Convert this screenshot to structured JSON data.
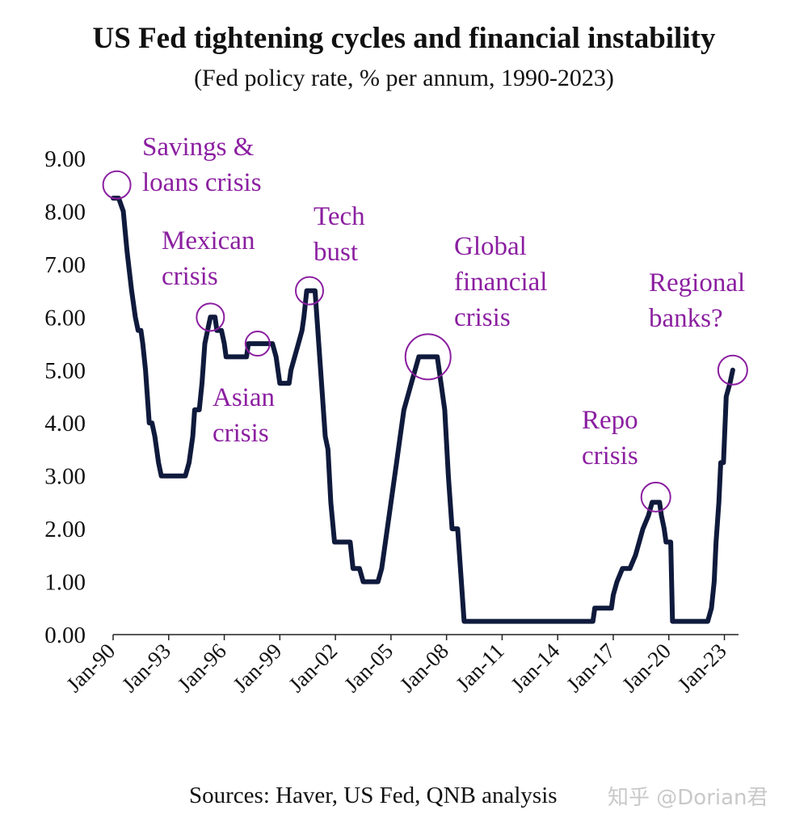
{
  "title": "US Fed tightening cycles and financial instability",
  "subtitle": "(Fed policy rate, % per annum, 1990-2023)",
  "source": "Sources: Haver, US Fed, QNB analysis",
  "watermark": "知乎 @Dorian君",
  "colors": {
    "line": "#0f1a3c",
    "annotation": "#8b1fa0",
    "axis": "#222222"
  },
  "chart_data": {
    "type": "line",
    "xlabel": "",
    "ylabel": "",
    "ylim": [
      0,
      9
    ],
    "xlim": [
      1990.0,
      2023.5
    ],
    "y_ticks": [
      "9.00",
      "8.00",
      "7.00",
      "6.00",
      "5.00",
      "4.00",
      "3.00",
      "2.00",
      "1.00",
      "0.00"
    ],
    "x_ticks": [
      {
        "label": "Jan-90",
        "value": 1990
      },
      {
        "label": "Jan-93",
        "value": 1993
      },
      {
        "label": "Jan-96",
        "value": 1996
      },
      {
        "label": "Jan-99",
        "value": 1999
      },
      {
        "label": "Jan-02",
        "value": 2002
      },
      {
        "label": "Jan-05",
        "value": 2005
      },
      {
        "label": "Jan-08",
        "value": 2008
      },
      {
        "label": "Jan-11",
        "value": 2011
      },
      {
        "label": "Jan-14",
        "value": 2014
      },
      {
        "label": "Jan-17",
        "value": 2017
      },
      {
        "label": "Jan-20",
        "value": 2020
      },
      {
        "label": "Jan-23",
        "value": 2023
      }
    ],
    "series": [
      {
        "points": [
          [
            1990.0,
            8.25
          ],
          [
            1990.3,
            8.25
          ],
          [
            1990.55,
            8.0
          ],
          [
            1990.75,
            7.25
          ],
          [
            1991.0,
            6.5
          ],
          [
            1991.2,
            6.0
          ],
          [
            1991.35,
            5.75
          ],
          [
            1991.5,
            5.75
          ],
          [
            1991.6,
            5.5
          ],
          [
            1991.75,
            5.0
          ],
          [
            1991.85,
            4.5
          ],
          [
            1991.95,
            4.0
          ],
          [
            1992.1,
            4.0
          ],
          [
            1992.25,
            3.75
          ],
          [
            1992.45,
            3.25
          ],
          [
            1992.6,
            3.0
          ],
          [
            1993.0,
            3.0
          ],
          [
            1993.5,
            3.0
          ],
          [
            1993.9,
            3.0
          ],
          [
            1994.1,
            3.25
          ],
          [
            1994.3,
            3.75
          ],
          [
            1994.4,
            4.25
          ],
          [
            1994.65,
            4.25
          ],
          [
            1994.8,
            4.75
          ],
          [
            1994.95,
            5.5
          ],
          [
            1995.1,
            5.75
          ],
          [
            1995.25,
            6.0
          ],
          [
            1995.5,
            6.0
          ],
          [
            1995.6,
            5.75
          ],
          [
            1995.85,
            5.75
          ],
          [
            1996.0,
            5.5
          ],
          [
            1996.1,
            5.25
          ],
          [
            1996.8,
            5.25
          ],
          [
            1997.2,
            5.25
          ],
          [
            1997.3,
            5.5
          ],
          [
            1998.0,
            5.5
          ],
          [
            1998.6,
            5.5
          ],
          [
            1998.8,
            5.25
          ],
          [
            1998.9,
            5.0
          ],
          [
            1999.0,
            4.75
          ],
          [
            1999.5,
            4.75
          ],
          [
            1999.6,
            5.0
          ],
          [
            1999.8,
            5.25
          ],
          [
            2000.0,
            5.5
          ],
          [
            2000.2,
            5.75
          ],
          [
            2000.3,
            6.0
          ],
          [
            2000.45,
            6.5
          ],
          [
            2000.9,
            6.5
          ],
          [
            2001.1,
            5.5
          ],
          [
            2001.3,
            4.5
          ],
          [
            2001.45,
            3.75
          ],
          [
            2001.6,
            3.5
          ],
          [
            2001.75,
            2.5
          ],
          [
            2001.95,
            1.75
          ],
          [
            2002.2,
            1.75
          ],
          [
            2002.8,
            1.75
          ],
          [
            2002.95,
            1.25
          ],
          [
            2003.3,
            1.25
          ],
          [
            2003.5,
            1.0
          ],
          [
            2004.3,
            1.0
          ],
          [
            2004.5,
            1.25
          ],
          [
            2004.7,
            1.75
          ],
          [
            2004.9,
            2.25
          ],
          [
            2005.1,
            2.75
          ],
          [
            2005.3,
            3.25
          ],
          [
            2005.5,
            3.75
          ],
          [
            2005.7,
            4.25
          ],
          [
            2005.9,
            4.5
          ],
          [
            2006.1,
            4.75
          ],
          [
            2006.3,
            5.0
          ],
          [
            2006.5,
            5.25
          ],
          [
            2007.5,
            5.25
          ],
          [
            2007.7,
            4.75
          ],
          [
            2007.9,
            4.25
          ],
          [
            2008.1,
            3.0
          ],
          [
            2008.3,
            2.0
          ],
          [
            2008.6,
            2.0
          ],
          [
            2008.8,
            1.0
          ],
          [
            2008.95,
            0.25
          ],
          [
            2012.0,
            0.25
          ],
          [
            2015.9,
            0.25
          ],
          [
            2016.0,
            0.5
          ],
          [
            2016.9,
            0.5
          ],
          [
            2017.0,
            0.75
          ],
          [
            2017.2,
            1.0
          ],
          [
            2017.5,
            1.25
          ],
          [
            2017.9,
            1.25
          ],
          [
            2018.2,
            1.5
          ],
          [
            2018.4,
            1.75
          ],
          [
            2018.6,
            2.0
          ],
          [
            2018.9,
            2.25
          ],
          [
            2019.1,
            2.5
          ],
          [
            2019.5,
            2.5
          ],
          [
            2019.6,
            2.25
          ],
          [
            2019.75,
            2.0
          ],
          [
            2019.85,
            1.75
          ],
          [
            2020.1,
            1.75
          ],
          [
            2020.2,
            0.25
          ],
          [
            2021.0,
            0.25
          ],
          [
            2022.1,
            0.25
          ],
          [
            2022.3,
            0.5
          ],
          [
            2022.45,
            1.0
          ],
          [
            2022.55,
            1.75
          ],
          [
            2022.7,
            2.5
          ],
          [
            2022.8,
            3.25
          ],
          [
            2022.95,
            3.25
          ],
          [
            2023.1,
            4.5
          ],
          [
            2023.3,
            4.75
          ],
          [
            2023.45,
            5.0
          ]
        ]
      }
    ],
    "annotations": [
      {
        "text": [
          "Savings &",
          "loans crisis"
        ],
        "circle": {
          "x": 1990.2,
          "y": 8.5,
          "r": 17
        }
      },
      {
        "text": [
          "Mexican",
          "crisis"
        ],
        "circle": {
          "x": 1995.25,
          "y": 6.0,
          "r": 17
        }
      },
      {
        "text": [
          "Asian",
          "crisis"
        ],
        "circle": {
          "x": 1997.8,
          "y": 5.5,
          "r": 15
        }
      },
      {
        "text": [
          "Tech",
          "bust"
        ],
        "circle": {
          "x": 2000.6,
          "y": 6.5,
          "r": 17
        }
      },
      {
        "text": [
          "Global",
          "financial",
          "crisis"
        ],
        "circle": {
          "x": 2007.0,
          "y": 5.25,
          "r": 28
        }
      },
      {
        "text": [
          "Repo",
          "crisis"
        ],
        "circle": {
          "x": 2019.3,
          "y": 2.6,
          "r": 18
        }
      },
      {
        "text": [
          "Regional",
          "banks?"
        ],
        "circle": {
          "x": 2023.45,
          "y": 5.0,
          "r": 18
        }
      }
    ]
  }
}
